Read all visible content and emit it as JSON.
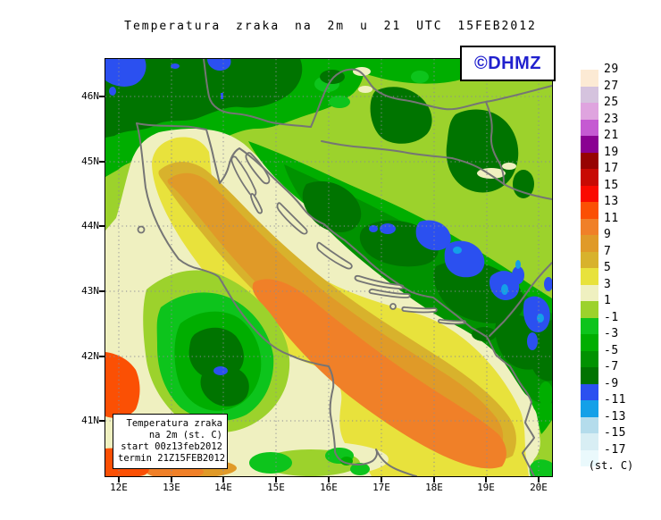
{
  "title": "Temperatura zraka na 2m u 21 UTC 15FEB2012",
  "branding": {
    "label": "©DHMZ",
    "color": "#2121CE"
  },
  "info_box": {
    "line1": "Temperatura zraka",
    "line2": "na 2m (st. C)",
    "line3": "start 00z13feb2012",
    "line4": "termin 21Z15FEB2012"
  },
  "colorbar": {
    "unit": "(st. C)",
    "entries": [
      {
        "label": "29",
        "color": "#FCEAD4"
      },
      {
        "label": "27",
        "color": "#D5C3DE"
      },
      {
        "label": "25",
        "color": "#DFA4DF"
      },
      {
        "label": "23",
        "color": "#C55AD2"
      },
      {
        "label": "21",
        "color": "#8A0092"
      },
      {
        "label": "19",
        "color": "#970303"
      },
      {
        "label": "17",
        "color": "#C80A04"
      },
      {
        "label": "15",
        "color": "#FA0A00"
      },
      {
        "label": "13",
        "color": "#FB5004"
      },
      {
        "label": "11",
        "color": "#F08028"
      },
      {
        "label": "9",
        "color": "#E09A28"
      },
      {
        "label": "7",
        "color": "#D8B22C"
      },
      {
        "label": "5",
        "color": "#E8E23C"
      },
      {
        "label": "3",
        "color": "#EFF0C0"
      },
      {
        "label": "1",
        "color": "#9CD22C"
      },
      {
        "label": "-1",
        "color": "#0DC41C"
      },
      {
        "label": "-3",
        "color": "#00AE00"
      },
      {
        "label": "-5",
        "color": "#009200"
      },
      {
        "label": "-7",
        "color": "#007400"
      },
      {
        "label": "-9",
        "color": "#2B50F0"
      },
      {
        "label": "-11",
        "color": "#14A0E8"
      },
      {
        "label": "-13",
        "color": "#B4DCEC"
      },
      {
        "label": "-15",
        "color": "#D8EEF4"
      },
      {
        "label": "-17",
        "color": "#EAF9FC"
      }
    ]
  },
  "axes": {
    "lon_labels": [
      "12E",
      "13E",
      "14E",
      "15E",
      "16E",
      "17E",
      "18E",
      "19E",
      "20E"
    ],
    "lat_labels": [
      "46N",
      "45N",
      "44N",
      "43N",
      "42N",
      "41N"
    ]
  }
}
